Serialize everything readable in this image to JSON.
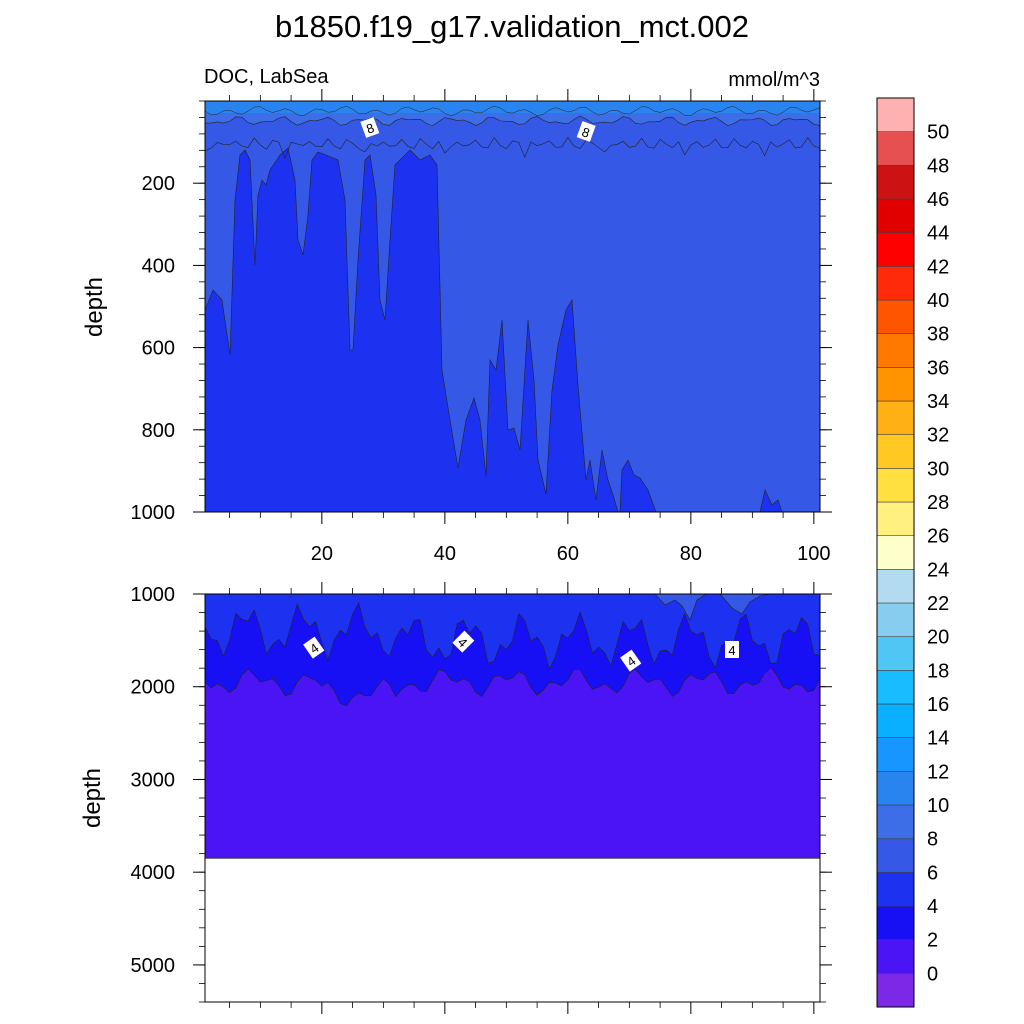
{
  "title": "b1850.f19_g17.validation_mct.002",
  "left_subtitle": "DOC, LabSea",
  "right_subtitle": "mmol/m^3",
  "chart_data": [
    {
      "type": "heatmap",
      "panel": "upper",
      "ylabel": "depth",
      "xlim": [
        1,
        101
      ],
      "ylim": [
        0,
        1000
      ],
      "y_reversed": true,
      "xticks": [
        20,
        40,
        60,
        80,
        100
      ],
      "yticks": [
        200,
        400,
        600,
        800,
        1000
      ],
      "contour_labels": [
        "8",
        "8"
      ],
      "regions": [
        {
          "range": "8-10",
          "description": "surface layer",
          "depth_top": 0,
          "depth_bottom_approx": 60
        },
        {
          "range": "6-8",
          "description": "upper interior",
          "depth_bottom_approx": 140
        },
        {
          "range": "4-6",
          "description": "deep water, tongues at x 5-40, 45-60"
        }
      ]
    },
    {
      "type": "heatmap",
      "panel": "lower",
      "ylabel": "depth",
      "xlim": [
        1,
        101
      ],
      "ylim": [
        1000,
        5400
      ],
      "y_reversed": true,
      "yticks": [
        1000,
        2000,
        3000,
        4000,
        5000
      ],
      "contour_labels": [
        "4",
        "4",
        "4",
        "4"
      ],
      "ocean_bottom_depth": 3850,
      "regions": [
        {
          "range": "4-6",
          "depth_bottom_approx": 1600
        },
        {
          "range": "2-4",
          "depth_bottom_approx": 2000
        },
        {
          "range": "0-2",
          "depth_bottom_approx": 3850
        }
      ]
    }
  ],
  "colorbar": {
    "labels": [
      "0",
      "2",
      "4",
      "6",
      "8",
      "10",
      "12",
      "14",
      "16",
      "18",
      "20",
      "22",
      "24",
      "26",
      "28",
      "30",
      "32",
      "34",
      "36",
      "38",
      "40",
      "42",
      "44",
      "46",
      "48",
      "50"
    ],
    "colors": [
      "#7c28e6",
      "#4a14f5",
      "#1710f5",
      "#1c32f0",
      "#3558e6",
      "#3d6ee8",
      "#2a84f0",
      "#1896ff",
      "#08b0ff",
      "#19bcff",
      "#50c6f5",
      "#86cdf0",
      "#b2dbf2",
      "#ffffcc",
      "#fff080",
      "#ffe040",
      "#ffc823",
      "#ffb014",
      "#ff9400",
      "#ff7800",
      "#ff5500",
      "#ff2a0a",
      "#ff0000",
      "#e00000",
      "#cc1212",
      "#e65050",
      "#ffb0b0"
    ]
  }
}
